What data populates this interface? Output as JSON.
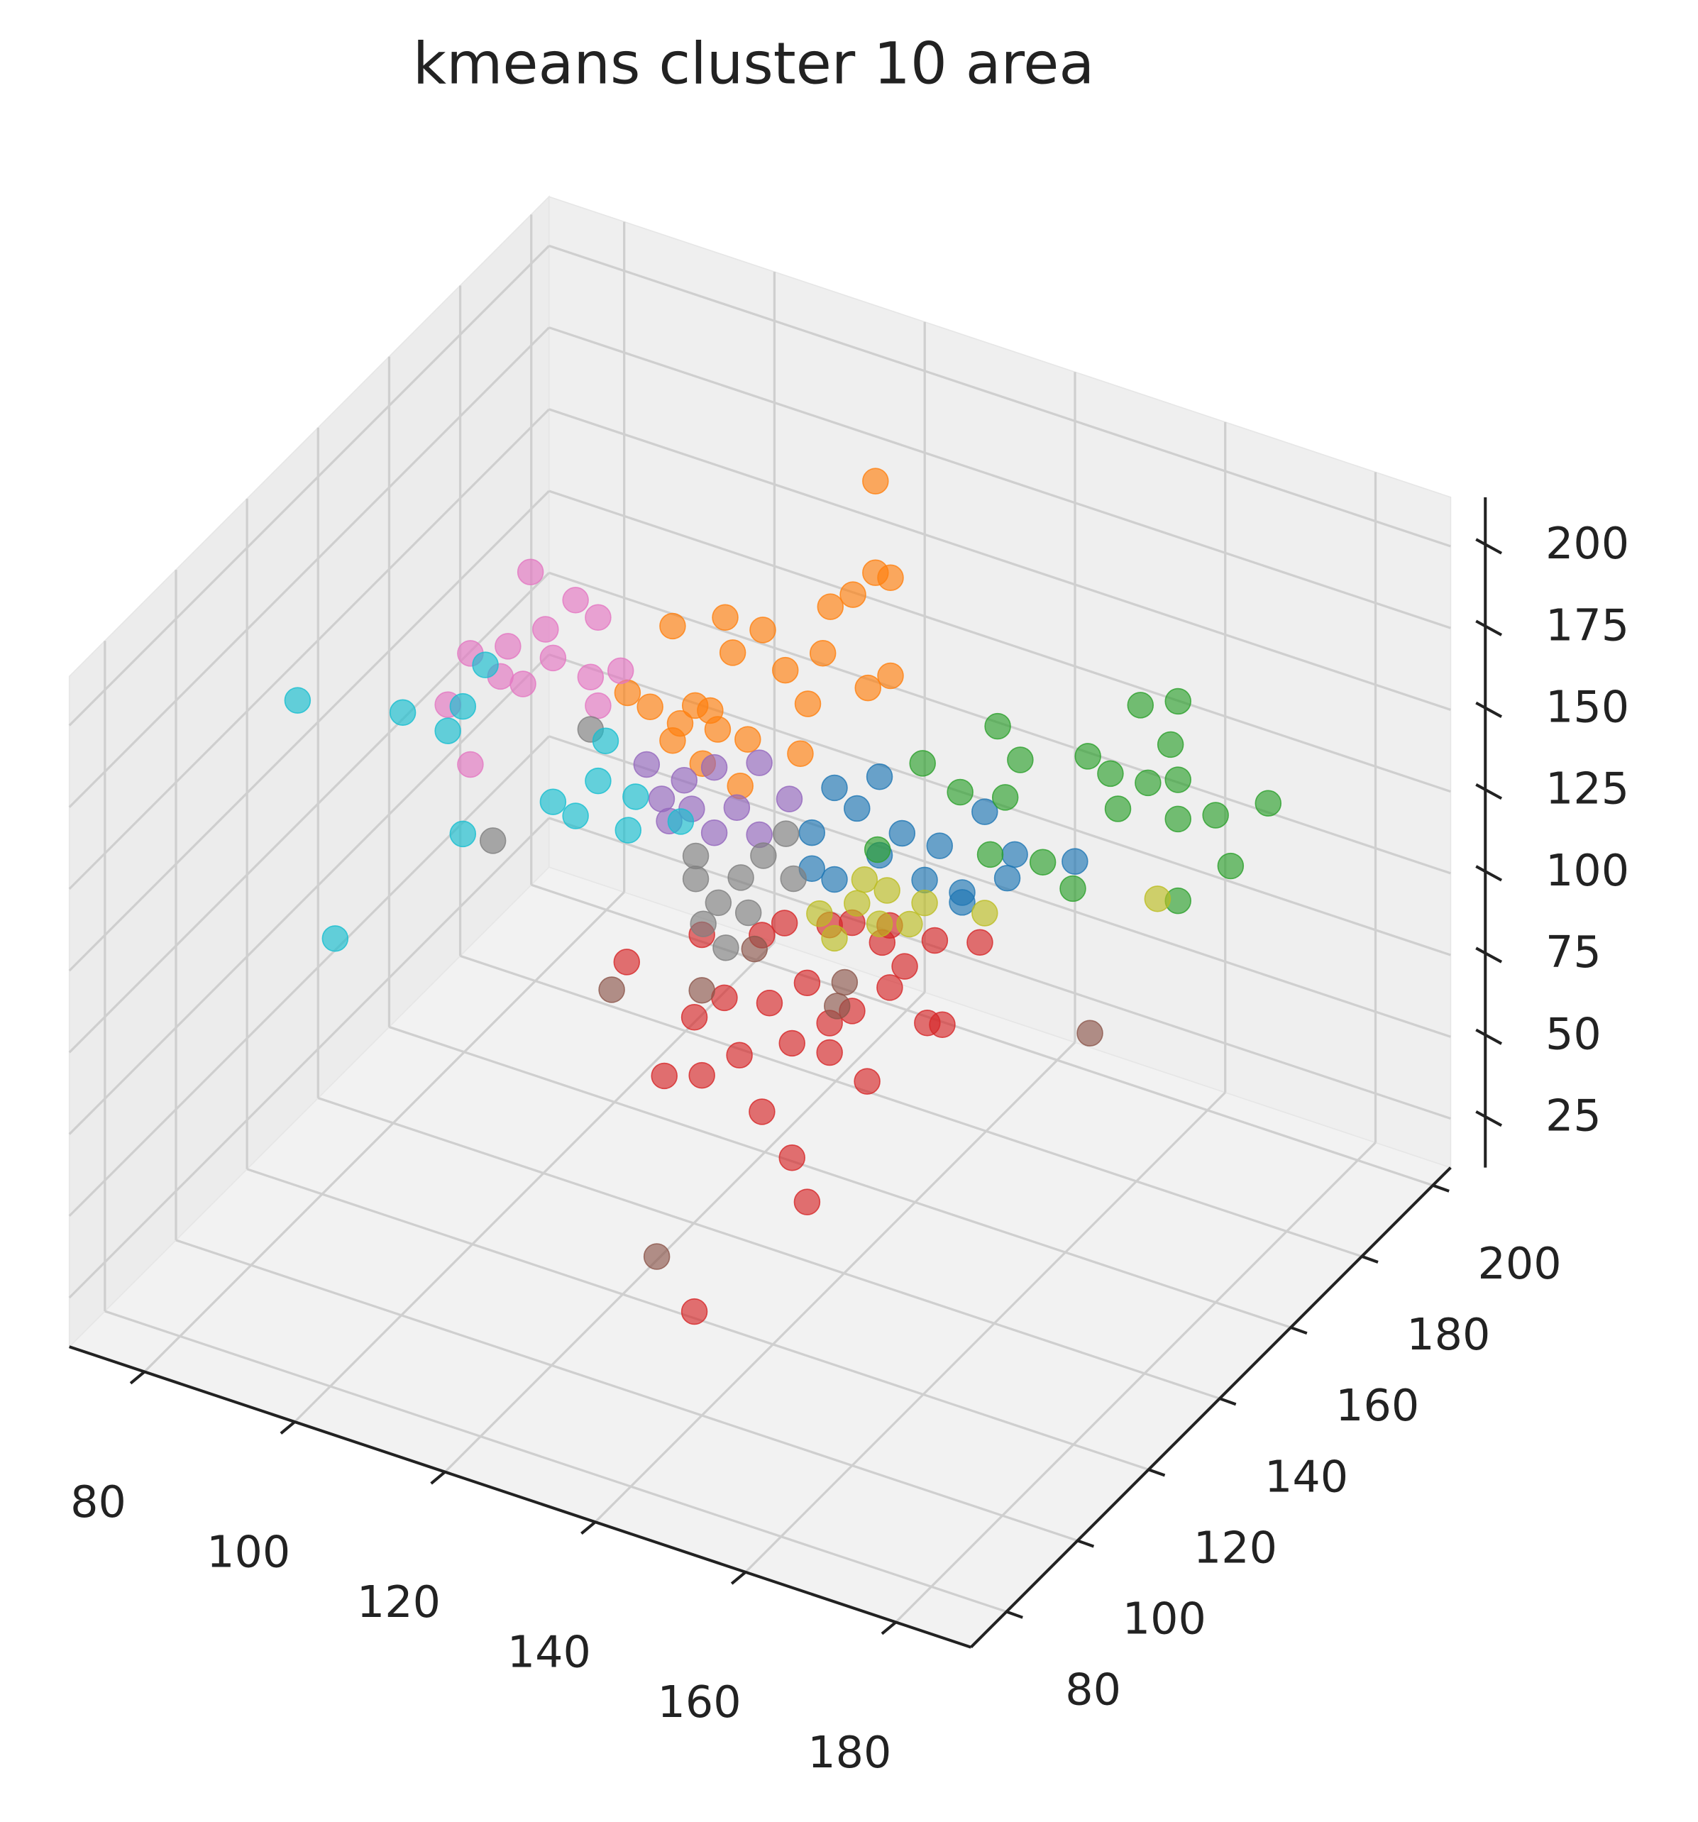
{
  "chart_data": {
    "type": "scatter3d",
    "title": "kmeans cluster 10 area",
    "xlim": [
      70,
      190
    ],
    "ylim": [
      70,
      205
    ],
    "zlim": [
      10,
      215
    ],
    "xticks": [
      80,
      100,
      120,
      140,
      160,
      180
    ],
    "yticks": [
      80,
      100,
      120,
      140,
      160,
      180,
      200
    ],
    "zticks": [
      25,
      50,
      75,
      100,
      125,
      150,
      175,
      200
    ],
    "grid": true,
    "series": [
      {
        "color": "#1f77b4",
        "x": [
          131,
          137,
          140,
          134,
          143,
          146,
          151,
          154,
          158,
          166,
          134,
          140,
          148,
          151,
          131,
          157
        ],
        "y": [
          150,
          150,
          150,
          150,
          150,
          150,
          150,
          150,
          150,
          150,
          150,
          150,
          150,
          150,
          150,
          150
        ],
        "z": [
          127,
          139,
          127,
          115,
          136,
          124,
          121,
          151,
          141,
          145,
          143,
          151,
          136,
          124,
          116,
          133
        ]
      },
      {
        "color": "#ff7f0e",
        "x": [
          130,
          130,
          132,
          124,
          127,
          110,
          115,
          103,
          111,
          118,
          123,
          132,
          129,
          106,
          109,
          103,
          113,
          121,
          107,
          112,
          100,
          120,
          97,
          104,
          108
        ],
        "y": [
          170,
          170,
          170,
          170,
          170,
          170,
          170,
          170,
          170,
          170,
          170,
          170,
          170,
          170,
          170,
          170,
          170,
          170,
          170,
          170,
          170,
          170,
          170,
          170,
          170
        ],
        "z": [
          212,
          184,
          184,
          169,
          175,
          155,
          155,
          147,
          145,
          145,
          154,
          154,
          148,
          125,
          120,
          112,
          120,
          137,
          108,
          105,
          120,
          121,
          122,
          118,
          125
        ]
      },
      {
        "color": "#2ca02c",
        "x": [
          170,
          175,
          174,
          151,
          154,
          141,
          146,
          152,
          163,
          166,
          171,
          175,
          180,
          187,
          167,
          175,
          150,
          157,
          161,
          182,
          175,
          135
        ],
        "y": [
          160,
          160,
          160,
          160,
          160,
          160,
          160,
          160,
          160,
          160,
          160,
          160,
          160,
          160,
          160,
          160,
          160,
          160,
          160,
          160,
          160,
          160
        ],
        "z": [
          185,
          190,
          176,
          164,
          156,
          145,
          140,
          143,
          164,
          161,
          162,
          166,
          159,
          168,
          151,
          154,
          124,
          127,
          122,
          145,
          129,
          114
        ]
      },
      {
        "color": "#d62728",
        "x": [
          139,
          154,
          152,
          148,
          135,
          140,
          145,
          152,
          157,
          162,
          170,
          172,
          165,
          160,
          157,
          139,
          143,
          149,
          154,
          164,
          167,
          171,
          177,
          157,
          151,
          140,
          148,
          130,
          160,
          165
        ],
        "y": [
          100,
          100,
          100,
          100,
          100,
          100,
          100,
          100,
          100,
          100,
          100,
          100,
          100,
          100,
          100,
          100,
          100,
          100,
          100,
          100,
          100,
          100,
          100,
          100,
          100,
          100,
          100,
          100,
          100,
          100
        ],
        "z": [
          41,
          86,
          98,
          109,
          110,
          114,
          124,
          133,
          134,
          129,
          153,
          154,
          160,
          149,
          143,
          131,
          140,
          143,
          153,
          173,
          168,
          179,
          183,
          173,
          169,
          157,
          163,
          141,
          176,
          179
        ]
      },
      {
        "color": "#9467bd",
        "x": [
          109,
          114,
          118,
          124,
          115,
          121,
          112,
          118,
          128,
          124,
          111
        ],
        "y": [
          150,
          150,
          150,
          150,
          150,
          150,
          150,
          150,
          150,
          150,
          150
        ],
        "z": [
          131,
          130,
          137,
          143,
          122,
          127,
          116,
          117,
          135,
          121,
          122
        ]
      },
      {
        "color": "#8c564b",
        "x": [
          128,
          140,
          147,
          134,
          168,
          159,
          158
        ],
        "y": [
          100,
          100,
          100,
          100,
          150,
          100,
          100
        ],
        "z": [
          131,
          140,
          158,
          54,
          94,
          157,
          149
        ]
      },
      {
        "color": "#e377c2",
        "x": [
          103,
          109,
          112,
          105,
          100,
          95,
          106,
          111,
          115,
          92,
          102,
          95,
          112,
          99
        ],
        "y": [
          130,
          130,
          130,
          130,
          130,
          130,
          130,
          130,
          130,
          130,
          130,
          130,
          130,
          130
        ],
        "z": [
          207,
          203,
          200,
          191,
          182,
          176,
          183,
          181,
          186,
          158,
          172,
          142,
          173,
          172
        ]
      },
      {
        "color": "#7f7f7f",
        "x": [
          125,
          128,
          131,
          134,
          137,
          126,
          129,
          132,
          98,
          111,
          138,
          125
        ],
        "y": [
          130,
          130,
          130,
          130,
          130,
          130,
          130,
          130,
          130,
          130,
          130,
          130
        ],
        "z": [
          130,
          125,
          135,
          144,
          153,
          117,
          112,
          125,
          121,
          165,
          140,
          137
        ]
      },
      {
        "color": "#bcbd22",
        "x": [
          132,
          137,
          141,
          146,
          134,
          140,
          144,
          138,
          154,
          177
        ],
        "y": [
          150,
          150,
          150,
          150,
          150,
          150,
          150,
          150,
          150,
          150
        ],
        "z": [
          103,
          110,
          117,
          117,
          97,
          106,
          109,
          118,
          120,
          142
        ]
      },
      {
        "color": "#17becf",
        "x": [
          72,
          77,
          86,
          94,
          92,
          94,
          97,
          106,
          109,
          112,
          116,
          117,
          123,
          113
        ],
        "y": [
          130,
          130,
          130,
          130,
          130,
          130,
          130,
          130,
          130,
          130,
          130,
          130,
          130,
          130
        ],
        "z": [
          144,
          75,
          151,
          120,
          150,
          159,
          174,
          139,
          137,
          150,
          138,
          149,
          146,
          163
        ]
      }
    ]
  }
}
